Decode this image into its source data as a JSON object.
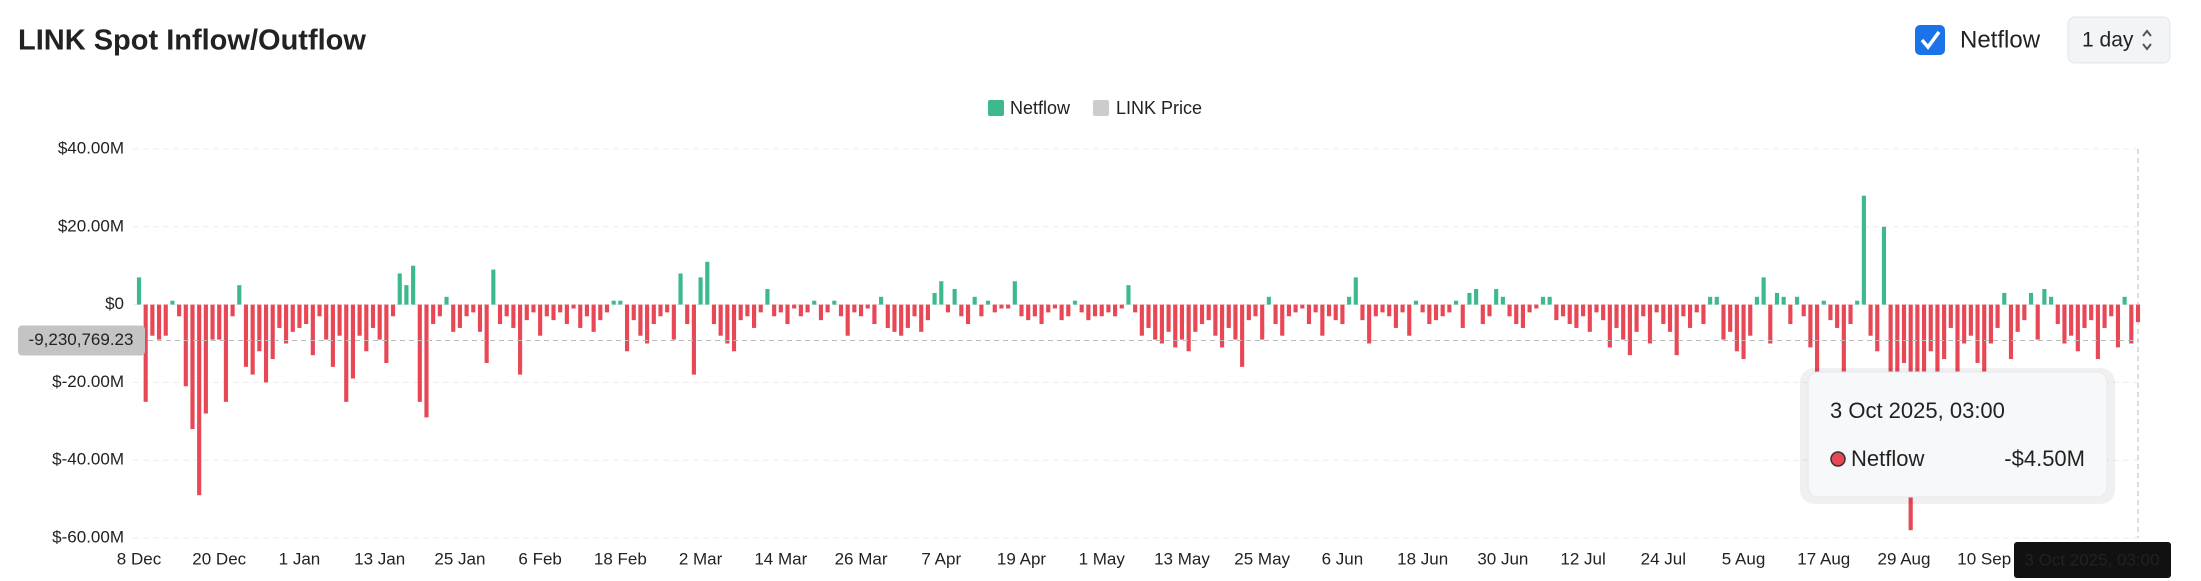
{
  "chart_data": {
    "type": "bar",
    "title": "LINK Spot Inflow/Outflow",
    "controls": {
      "checkbox_label": "Netflow",
      "interval": "1 day"
    },
    "series": [
      {
        "name": "Netflow",
        "color": "#3dba8c",
        "negative_color": "#e84855",
        "values": [
          7,
          -25,
          -8,
          -9,
          -8,
          1,
          -3,
          -21,
          -32,
          -49,
          -28,
          -9,
          -9,
          -25,
          -3,
          5,
          -16,
          -18,
          -12,
          -20,
          -14,
          -6,
          -10,
          -7,
          -6,
          -5,
          -13,
          -3,
          -9,
          -16,
          -8,
          -25,
          -19,
          -8,
          -12,
          -6,
          -9,
          -15,
          -3,
          8,
          5,
          10,
          -25,
          -29,
          -5,
          -3,
          2,
          -7,
          -6,
          -3,
          -2,
          -7,
          -15,
          9,
          -5,
          -3,
          -6,
          -18,
          -4,
          -2,
          -8,
          -3,
          -4,
          -2,
          -5,
          -1,
          -6,
          -3,
          -7,
          -4,
          -2,
          1,
          1,
          -12,
          -4,
          -8,
          -10,
          -5,
          -3,
          -2,
          -9,
          8,
          -5,
          -18,
          7,
          11,
          -5,
          -8,
          -10,
          -12,
          -4,
          -3,
          -6,
          -2,
          4,
          -3,
          -2,
          -5,
          -1,
          -3,
          -2,
          1,
          -4,
          -2,
          1,
          -3,
          -8,
          -2,
          -3,
          -1,
          -5,
          2,
          -6,
          -7,
          -8,
          -6,
          -3,
          -7,
          -4,
          3,
          6,
          -2,
          4,
          -3,
          -5,
          2,
          -3,
          1,
          -2,
          -1,
          -1,
          6,
          -3,
          -4,
          -3,
          -5,
          -2,
          -1,
          -4,
          -3,
          1,
          -2,
          -4,
          -3,
          -3,
          -2,
          -3,
          -1,
          5,
          -2,
          -8,
          -6,
          -9,
          -10,
          -7,
          -11,
          -9,
          -12,
          -7,
          -5,
          -4,
          -8,
          -11,
          -6,
          -9,
          -16,
          -4,
          -3,
          -9,
          2,
          -5,
          -8,
          -3,
          -2,
          -1,
          -5,
          -2,
          -8,
          -3,
          -4,
          -5,
          2,
          7,
          -4,
          -10,
          -3,
          -2,
          -3,
          -6,
          -2,
          -8,
          1,
          -2,
          -5,
          -4,
          -3,
          -2,
          1,
          -6,
          3,
          4,
          -5,
          -3,
          4,
          2,
          -3,
          -5,
          -6,
          -2,
          -1,
          2,
          2,
          -4,
          -3,
          -5,
          -6,
          -3,
          -7,
          -2,
          -4,
          -11,
          -6,
          -9,
          -13,
          -7,
          -3,
          -10,
          -2,
          -5,
          -7,
          -13,
          -3,
          -6,
          -2,
          -5,
          2,
          2,
          -9,
          -7,
          -12,
          -14,
          -8,
          2,
          7,
          -10,
          3,
          2,
          -5,
          2,
          -3,
          -11,
          -30,
          1,
          -4,
          -6,
          -42,
          -5,
          1,
          28,
          -8,
          -12,
          20,
          -28,
          -22,
          -15,
          -58,
          -25,
          -18,
          -12,
          -22,
          -14,
          -6,
          -18,
          -10,
          -8,
          -15,
          -26,
          -10,
          -6,
          3,
          -14,
          -7,
          -4,
          3,
          -9,
          4,
          2,
          -5,
          -10,
          -8,
          -12,
          -6,
          -4,
          -14,
          -6,
          -3,
          -11,
          2,
          -10,
          -4.5
        ]
      }
    ],
    "hidden_series": [
      {
        "name": "LINK Price",
        "color": "#cccccc"
      }
    ],
    "categories": [
      "8 Dec",
      null,
      null,
      null,
      null,
      null,
      null,
      null,
      null,
      null,
      null,
      null,
      "20 Dec",
      null,
      null,
      null,
      null,
      null,
      null,
      null,
      null,
      null,
      null,
      null,
      "1 Jan",
      null,
      null,
      null,
      null,
      null,
      null,
      null,
      null,
      null,
      null,
      null,
      "13 Jan",
      null,
      null,
      null,
      null,
      null,
      null,
      null,
      null,
      null,
      null,
      null,
      "25 Jan",
      null,
      null,
      null,
      null,
      null,
      null,
      null,
      null,
      null,
      null,
      null,
      "6 Feb",
      null,
      null,
      null,
      null,
      null,
      null,
      null,
      null,
      null,
      null,
      null,
      "18 Feb",
      null,
      null,
      null,
      null,
      null,
      null,
      null,
      null,
      null,
      null,
      null,
      "2 Mar",
      null,
      null,
      null,
      null,
      null,
      null,
      null,
      null,
      null,
      null,
      null,
      "14 Mar",
      null,
      null,
      null,
      null,
      null,
      null,
      null,
      null,
      null,
      null,
      null,
      "26 Mar",
      null,
      null,
      null,
      null,
      null,
      null,
      null,
      null,
      null,
      null,
      null,
      "7 Apr",
      null,
      null,
      null,
      null,
      null,
      null,
      null,
      null,
      null,
      null,
      null,
      "19 Apr",
      null,
      null,
      null,
      null,
      null,
      null,
      null,
      null,
      null,
      null,
      null,
      "1 May",
      null,
      null,
      null,
      null,
      null,
      null,
      null,
      null,
      null,
      null,
      null,
      "13 May",
      null,
      null,
      null,
      null,
      null,
      null,
      null,
      null,
      null,
      null,
      null,
      "25 May",
      null,
      null,
      null,
      null,
      null,
      null,
      null,
      null,
      null,
      null,
      null,
      "6 Jun",
      null,
      null,
      null,
      null,
      null,
      null,
      null,
      null,
      null,
      null,
      null,
      "18 Jun",
      null,
      null,
      null,
      null,
      null,
      null,
      null,
      null,
      null,
      null,
      null,
      "30 Jun",
      null,
      null,
      null,
      null,
      null,
      null,
      null,
      null,
      null,
      null,
      null,
      "12 Jul",
      null,
      null,
      null,
      null,
      null,
      null,
      null,
      null,
      null,
      null,
      null,
      "24 Jul",
      null,
      null,
      null,
      null,
      null,
      null,
      null,
      null,
      null,
      null,
      null,
      "5 Aug",
      null,
      null,
      null,
      null,
      null,
      null,
      null,
      null,
      null,
      null,
      null,
      "17 Aug",
      null,
      null,
      null,
      null,
      null,
      null,
      null,
      null,
      null,
      null,
      null,
      "29 Aug",
      null,
      null,
      null,
      null,
      null,
      null,
      null,
      null,
      null,
      null,
      null,
      "10 Sep",
      null,
      null,
      null,
      null,
      null,
      null,
      null,
      null,
      null,
      null,
      null,
      null,
      null,
      null,
      null,
      null,
      null,
      null,
      null,
      null,
      null,
      null,
      "3 Oct 2025, 03:00"
    ],
    "ylim": [
      -60,
      40
    ],
    "yticks": [
      {
        "value": 40,
        "label": "$40.00M"
      },
      {
        "value": 20,
        "label": "$20.00M"
      },
      {
        "value": 0,
        "label": "$0"
      },
      {
        "value": -20,
        "label": "$-20.00M"
      },
      {
        "value": -40,
        "label": "$-40.00M"
      },
      {
        "value": -60,
        "label": "$-60.00M"
      }
    ],
    "grid": true,
    "crosshair": {
      "value": -9.23076923,
      "label": "-9,230,769.23"
    },
    "tooltip": {
      "title": "3 Oct 2025, 03:00",
      "series": "Netflow",
      "label": "-$4.50M"
    }
  }
}
